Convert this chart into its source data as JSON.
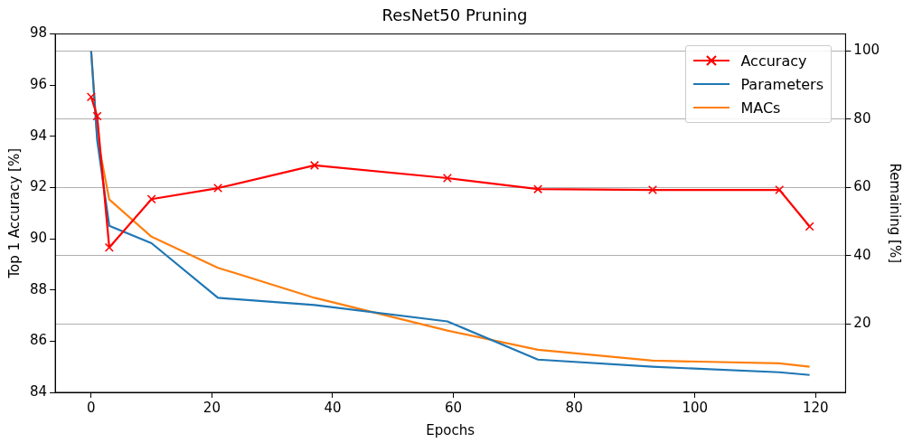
{
  "chart_data": {
    "type": "line",
    "title": "ResNet50 Pruning",
    "xlabel": "Epochs",
    "ylabel": "Top 1 Accuracy [%]",
    "y2label": "Remaining [%]",
    "x": [
      0,
      1,
      3,
      10,
      21,
      37,
      59,
      74,
      93,
      114,
      119
    ],
    "series": [
      {
        "name": "Accuracy",
        "color": "#ff0000",
        "marker": "cross",
        "values": [
          95.54,
          94.79,
          89.66,
          91.55,
          91.98,
          92.87,
          92.37,
          91.94,
          91.91,
          91.91,
          90.48
        ]
      },
      {
        "name": "Parameters",
        "color": "#1f77b4",
        "marker": "none",
        "axis": "y2",
        "values": [
          100,
          73.9,
          48.8,
          43.7,
          27.7,
          25.6,
          20.8,
          9.6,
          7.5,
          5.9,
          5.1
        ]
      },
      {
        "name": "MACs",
        "color": "#ff7f0e",
        "marker": "none",
        "axis": "y2",
        "values": [
          100,
          75,
          56.5,
          45.6,
          36.5,
          27.7,
          18.1,
          12.5,
          9.3,
          8.5,
          7.5
        ]
      }
    ],
    "xlim": [
      -5.95,
      124.95
    ],
    "xticks": [
      0,
      20,
      40,
      60,
      80,
      100,
      120
    ],
    "ylim": [
      84,
      98
    ],
    "yticks": [
      84,
      86,
      88,
      90,
      92,
      94,
      96,
      98
    ],
    "y2lim": [
      0,
      105
    ],
    "y2ticks": [
      20,
      40,
      60,
      80,
      100
    ],
    "grid": "y2",
    "legend": "top right"
  }
}
